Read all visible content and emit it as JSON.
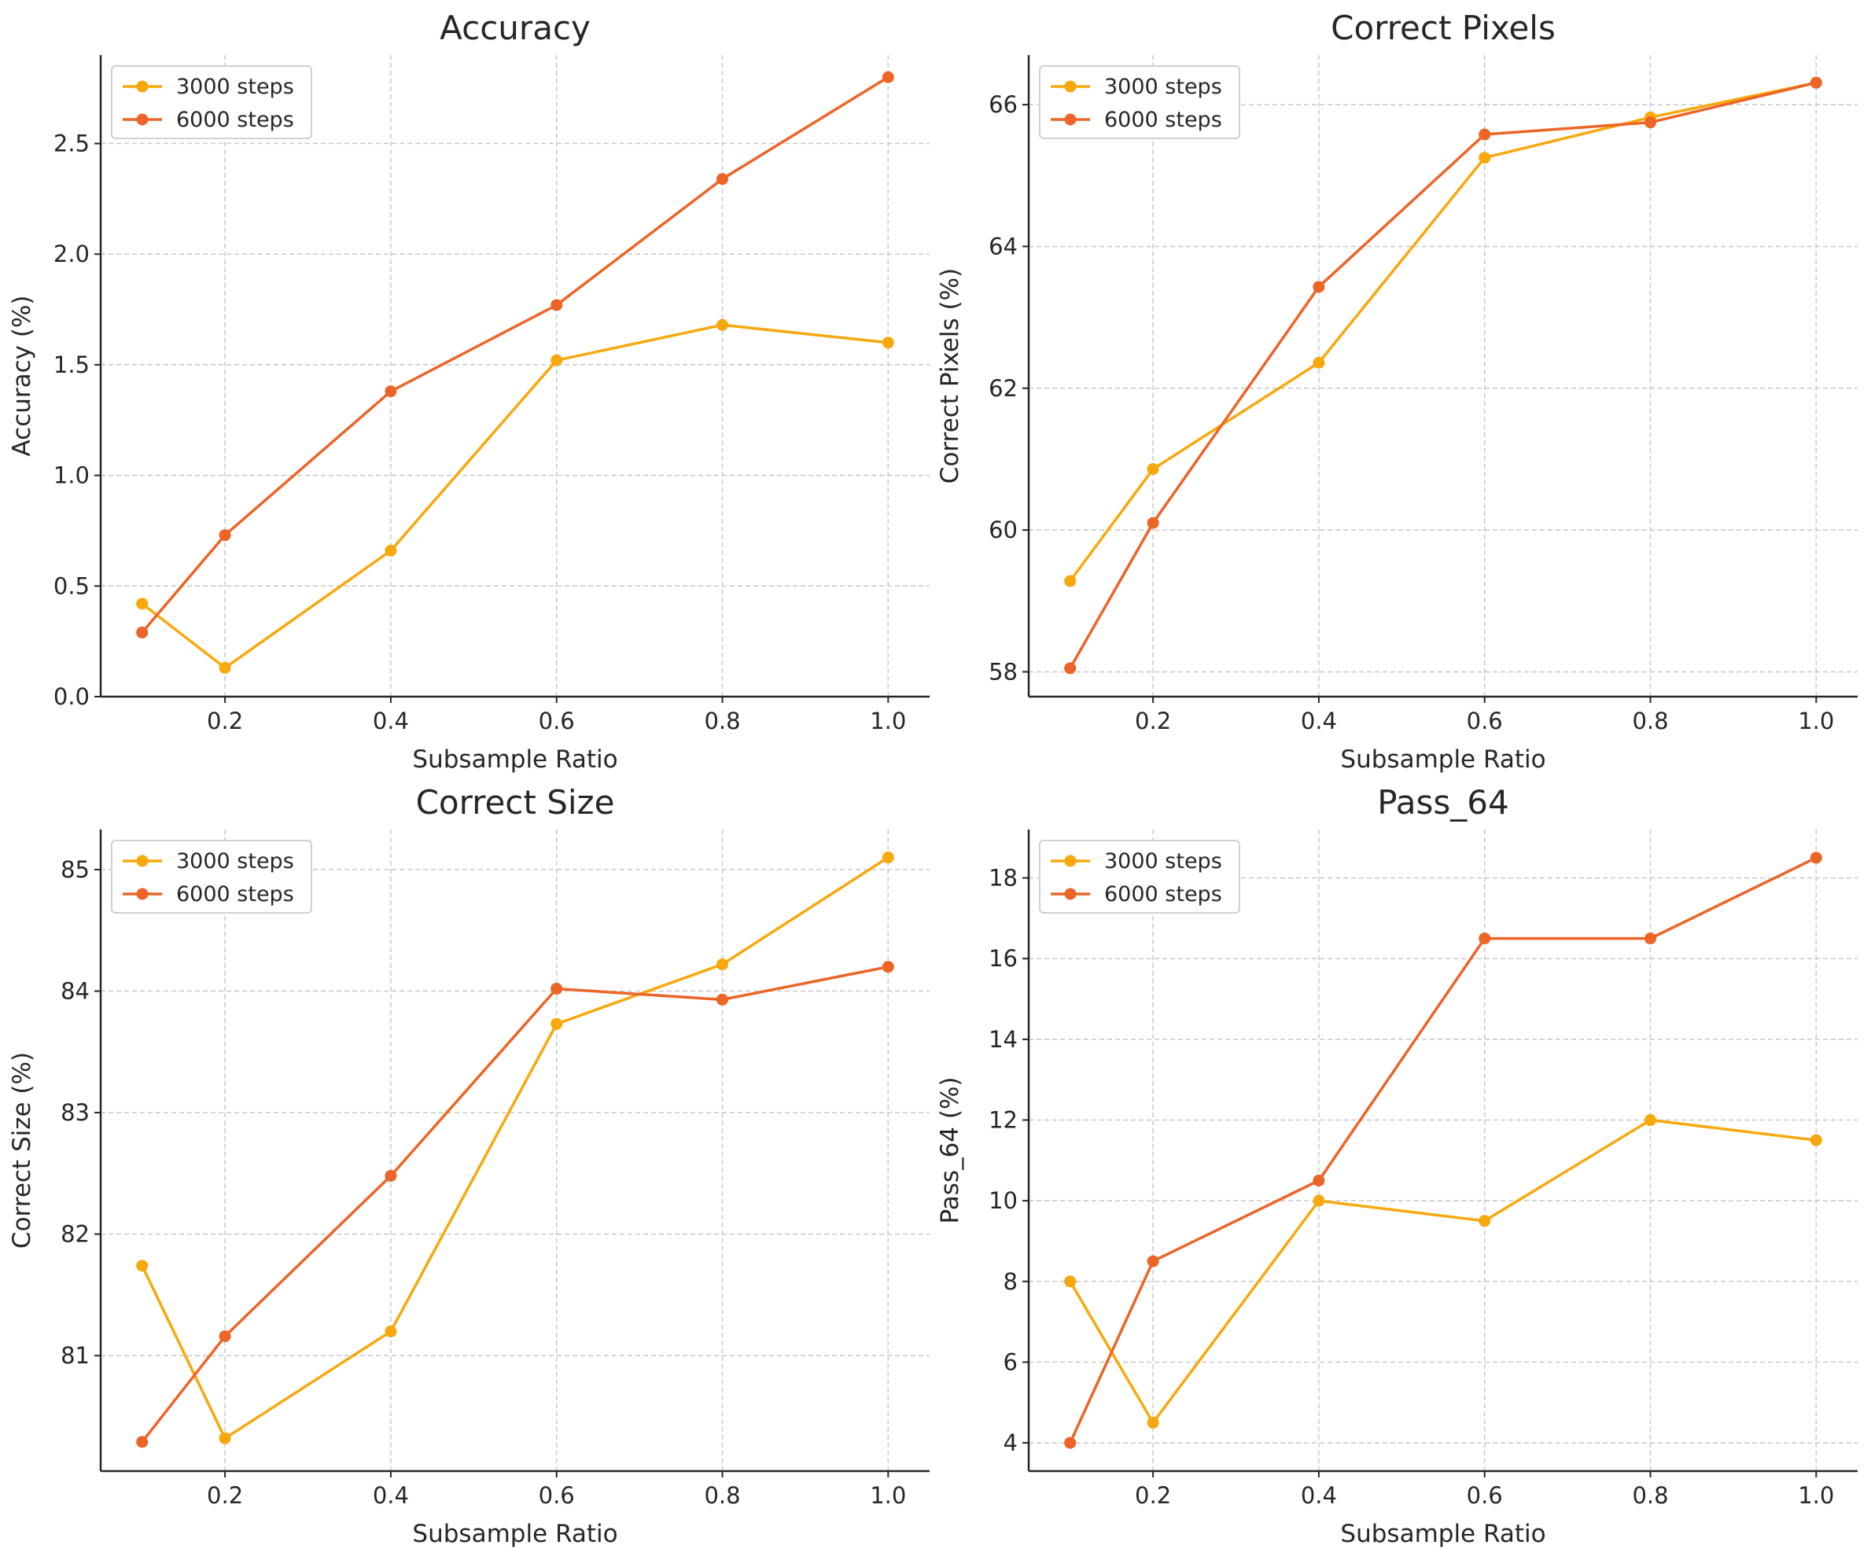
{
  "colors": {
    "series_3000": "#f8a80c",
    "series_6000": "#ec6426"
  },
  "chart_data": [
    {
      "type": "line",
      "title": "Accuracy",
      "xlabel": "Subsample Ratio",
      "ylabel": "Accuracy (%)",
      "x": [
        0.1,
        0.2,
        0.4,
        0.6,
        0.8,
        1.0
      ],
      "xlim": [
        0.05,
        1.05
      ],
      "xticks": [
        0.2,
        0.4,
        0.6,
        0.8,
        1.0
      ],
      "xtick_labels": [
        "0.2",
        "0.4",
        "0.6",
        "0.8",
        "1.0"
      ],
      "ylim": [
        0,
        2.9
      ],
      "yticks": [
        0.0,
        0.5,
        1.0,
        1.5,
        2.0,
        2.5
      ],
      "ytick_labels": [
        "0.0",
        "0.5",
        "1.0",
        "1.5",
        "2.0",
        "2.5"
      ],
      "grid": true,
      "legend_position": "top-left",
      "series": [
        {
          "name": "3000 steps",
          "color": "#f8a80c",
          "values": [
            0.42,
            0.13,
            0.66,
            1.52,
            1.68,
            1.6
          ]
        },
        {
          "name": "6000 steps",
          "color": "#ec6426",
          "values": [
            0.29,
            0.73,
            1.38,
            1.77,
            2.34,
            2.8
          ]
        }
      ]
    },
    {
      "type": "line",
      "title": "Correct Pixels",
      "xlabel": "Subsample Ratio",
      "ylabel": "Correct Pixels (%)",
      "x": [
        0.1,
        0.2,
        0.4,
        0.6,
        0.8,
        1.0
      ],
      "xlim": [
        0.05,
        1.05
      ],
      "xticks": [
        0.2,
        0.4,
        0.6,
        0.8,
        1.0
      ],
      "xtick_labels": [
        "0.2",
        "0.4",
        "0.6",
        "0.8",
        "1.0"
      ],
      "ylim": [
        57.65,
        66.7
      ],
      "yticks": [
        58,
        60,
        62,
        64,
        66
      ],
      "ytick_labels": [
        "58",
        "60",
        "62",
        "64",
        "66"
      ],
      "grid": true,
      "legend_position": "top-left",
      "series": [
        {
          "name": "3000 steps",
          "color": "#f8a80c",
          "values": [
            59.28,
            60.86,
            62.36,
            65.25,
            65.82,
            66.31
          ]
        },
        {
          "name": "6000 steps",
          "color": "#ec6426",
          "values": [
            58.05,
            60.1,
            63.43,
            65.58,
            65.75,
            66.31
          ]
        }
      ]
    },
    {
      "type": "line",
      "title": "Correct Size",
      "xlabel": "Subsample Ratio",
      "ylabel": "Correct Size (%)",
      "x": [
        0.1,
        0.2,
        0.4,
        0.6,
        0.8,
        1.0
      ],
      "xlim": [
        0.05,
        1.05
      ],
      "xticks": [
        0.2,
        0.4,
        0.6,
        0.8,
        1.0
      ],
      "xtick_labels": [
        "0.2",
        "0.4",
        "0.6",
        "0.8",
        "1.0"
      ],
      "ylim": [
        80.05,
        85.33
      ],
      "yticks": [
        81,
        82,
        83,
        84,
        85
      ],
      "ytick_labels": [
        "81",
        "82",
        "83",
        "84",
        "85"
      ],
      "grid": true,
      "legend_position": "top-left",
      "series": [
        {
          "name": "3000 steps",
          "color": "#f8a80c",
          "values": [
            81.74,
            80.32,
            81.2,
            83.73,
            84.22,
            85.1
          ]
        },
        {
          "name": "6000 steps",
          "color": "#ec6426",
          "values": [
            80.29,
            81.16,
            82.48,
            84.02,
            83.93,
            84.2
          ]
        }
      ]
    },
    {
      "type": "line",
      "title": "Pass_64",
      "xlabel": "Subsample Ratio",
      "ylabel": "Pass_64 (%)",
      "x": [
        0.1,
        0.2,
        0.4,
        0.6,
        0.8,
        1.0
      ],
      "xlim": [
        0.05,
        1.05
      ],
      "xticks": [
        0.2,
        0.4,
        0.6,
        0.8,
        1.0
      ],
      "xtick_labels": [
        "0.2",
        "0.4",
        "0.6",
        "0.8",
        "1.0"
      ],
      "ylim": [
        3.3,
        19.2
      ],
      "yticks": [
        4,
        6,
        8,
        10,
        12,
        14,
        16,
        18
      ],
      "ytick_labels": [
        "4",
        "6",
        "8",
        "10",
        "12",
        "14",
        "16",
        "18"
      ],
      "grid": true,
      "legend_position": "top-left",
      "series": [
        {
          "name": "3000 steps",
          "color": "#f8a80c",
          "values": [
            8.0,
            4.5,
            10.0,
            9.5,
            12.0,
            11.5
          ]
        },
        {
          "name": "6000 steps",
          "color": "#ec6426",
          "values": [
            4.0,
            8.5,
            10.5,
            16.5,
            16.5,
            18.5
          ]
        }
      ]
    }
  ]
}
